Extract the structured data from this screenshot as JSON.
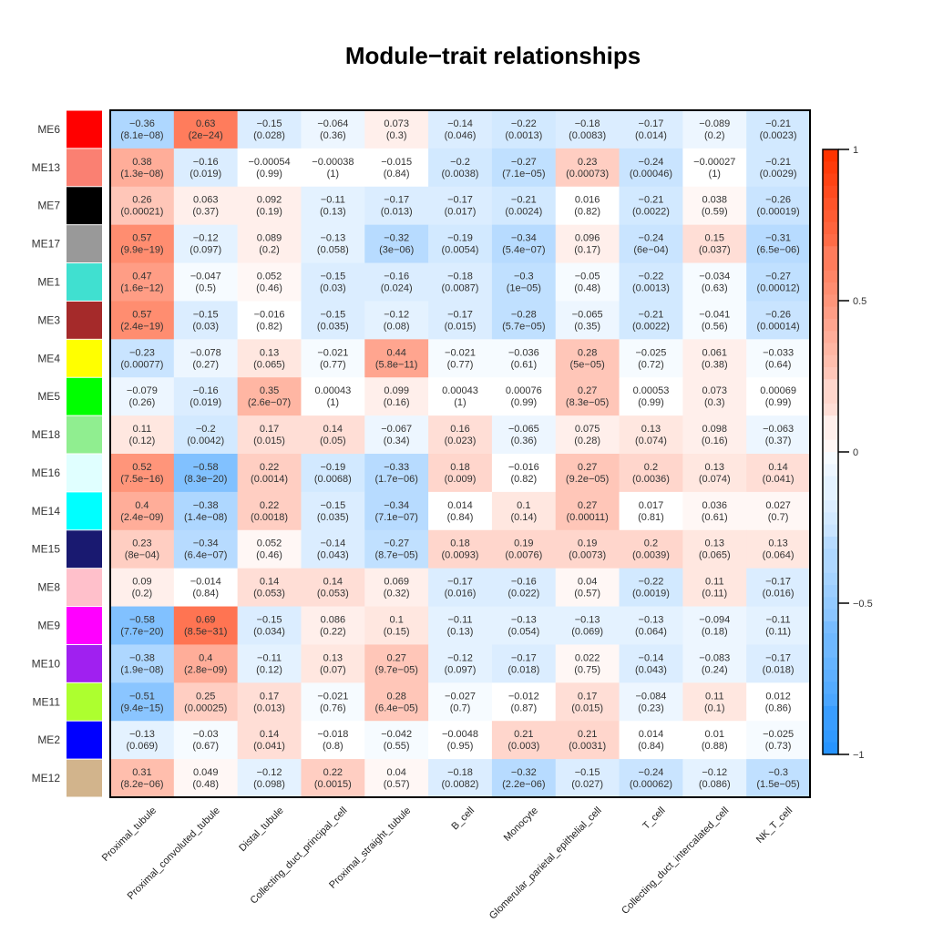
{
  "chart_data": {
    "type": "heatmap",
    "title": "Module−trait relationships",
    "xlabel": "",
    "ylabel": "",
    "columns": [
      "Proximal_tubule",
      "Proximal_convoluted_tubule",
      "Distal_tubule",
      "Collecting_duct_principal_cell",
      "Proximal_straight_tubule",
      "B_cell",
      "Monocyte",
      "Glomerular_parietal_epithelial_cell",
      "T_cell",
      "Collecting_duct_intercalated_cell",
      "NK_T_cell"
    ],
    "rows": [
      {
        "name": "ME6",
        "color": "#FF0000"
      },
      {
        "name": "ME13",
        "color": "#FA8072"
      },
      {
        "name": "ME7",
        "color": "#000000"
      },
      {
        "name": "ME17",
        "color": "#999999"
      },
      {
        "name": "ME1",
        "color": "#40E0D0"
      },
      {
        "name": "ME3",
        "color": "#A52A2A"
      },
      {
        "name": "ME4",
        "color": "#FFFF00"
      },
      {
        "name": "ME5",
        "color": "#00FF00"
      },
      {
        "name": "ME18",
        "color": "#90EE90"
      },
      {
        "name": "ME16",
        "color": "#E0FFFF"
      },
      {
        "name": "ME14",
        "color": "#00FFFF"
      },
      {
        "name": "ME15",
        "color": "#191970"
      },
      {
        "name": "ME8",
        "color": "#FFC0CB"
      },
      {
        "name": "ME9",
        "color": "#FF00FF"
      },
      {
        "name": "ME10",
        "color": "#A020F0"
      },
      {
        "name": "ME11",
        "color": "#ADFF2F"
      },
      {
        "name": "ME2",
        "color": "#0000FF"
      },
      {
        "name": "ME12",
        "color": "#D2B48C"
      }
    ],
    "correlations": [
      [
        -0.36,
        0.63,
        -0.15,
        -0.064,
        0.073,
        -0.14,
        -0.22,
        -0.18,
        -0.17,
        -0.089,
        -0.21
      ],
      [
        0.38,
        -0.16,
        -0.00054,
        -0.00038,
        -0.015,
        -0.2,
        -0.27,
        0.23,
        -0.24,
        -0.00027,
        -0.21
      ],
      [
        0.26,
        0.063,
        0.092,
        -0.11,
        -0.17,
        -0.17,
        -0.21,
        0.016,
        -0.21,
        0.038,
        -0.26
      ],
      [
        0.57,
        -0.12,
        0.089,
        -0.13,
        -0.32,
        -0.19,
        -0.34,
        0.096,
        -0.24,
        0.15,
        -0.31
      ],
      [
        0.47,
        -0.047,
        0.052,
        -0.15,
        -0.16,
        -0.18,
        -0.3,
        -0.05,
        -0.22,
        -0.034,
        -0.27
      ],
      [
        0.57,
        -0.15,
        -0.016,
        -0.15,
        -0.12,
        -0.17,
        -0.28,
        -0.065,
        -0.21,
        -0.041,
        -0.26
      ],
      [
        -0.23,
        -0.078,
        0.13,
        -0.021,
        0.44,
        -0.021,
        -0.036,
        0.28,
        -0.025,
        0.061,
        -0.033
      ],
      [
        -0.079,
        -0.16,
        0.35,
        0.00043,
        0.099,
        0.00043,
        0.00076,
        0.27,
        0.00053,
        0.073,
        0.00069
      ],
      [
        0.11,
        -0.2,
        0.17,
        0.14,
        -0.067,
        0.16,
        -0.065,
        0.075,
        0.13,
        0.098,
        -0.063
      ],
      [
        0.52,
        -0.58,
        0.22,
        -0.19,
        -0.33,
        0.18,
        -0.016,
        0.27,
        0.2,
        0.13,
        0.14
      ],
      [
        0.4,
        -0.38,
        0.22,
        -0.15,
        -0.34,
        0.014,
        0.1,
        0.27,
        0.017,
        0.036,
        0.027
      ],
      [
        0.23,
        -0.34,
        0.052,
        -0.14,
        -0.27,
        0.18,
        0.19,
        0.19,
        0.2,
        0.13,
        0.13
      ],
      [
        0.09,
        -0.014,
        0.14,
        0.14,
        0.069,
        -0.17,
        -0.16,
        0.04,
        -0.22,
        0.11,
        -0.17
      ],
      [
        -0.58,
        0.69,
        -0.15,
        0.086,
        0.1,
        -0.11,
        -0.13,
        -0.13,
        -0.13,
        -0.094,
        -0.11
      ],
      [
        -0.38,
        0.4,
        -0.11,
        0.13,
        0.27,
        -0.12,
        -0.17,
        0.022,
        -0.14,
        -0.083,
        -0.17
      ],
      [
        -0.51,
        0.25,
        0.17,
        -0.021,
        0.28,
        -0.027,
        -0.012,
        0.17,
        -0.084,
        0.11,
        0.012
      ],
      [
        -0.13,
        -0.03,
        0.14,
        -0.018,
        -0.042,
        -0.0048,
        0.21,
        0.21,
        0.014,
        0.01,
        -0.025
      ],
      [
        0.31,
        0.049,
        -0.12,
        0.22,
        0.04,
        -0.18,
        -0.32,
        -0.15,
        -0.24,
        -0.12,
        -0.3
      ]
    ],
    "pvalues": [
      [
        "8.1e−08",
        "2e−24",
        "0.028",
        "0.36",
        "0.3",
        "0.046",
        "0.0013",
        "0.0083",
        "0.014",
        "0.2",
        "0.0023"
      ],
      [
        "1.3e−08",
        "0.019",
        "0.99",
        "1",
        "0.84",
        "0.0038",
        "7.1e−05",
        "0.00073",
        "0.00046",
        "1",
        "0.0029"
      ],
      [
        "0.00021",
        "0.37",
        "0.19",
        "0.13",
        "0.013",
        "0.017",
        "0.0024",
        "0.82",
        "0.0022",
        "0.59",
        "0.00019"
      ],
      [
        "9.9e−19",
        "0.097",
        "0.2",
        "0.058",
        "3e−06",
        "0.0054",
        "5.4e−07",
        "0.17",
        "6e−04",
        "0.037",
        "6.5e−06"
      ],
      [
        "1.6e−12",
        "0.5",
        "0.46",
        "0.03",
        "0.024",
        "0.0087",
        "1e−05",
        "0.48",
        "0.0013",
        "0.63",
        "0.00012"
      ],
      [
        "2.4e−19",
        "0.03",
        "0.82",
        "0.035",
        "0.08",
        "0.015",
        "5.7e−05",
        "0.35",
        "0.0022",
        "0.56",
        "0.00014"
      ],
      [
        "0.00077",
        "0.27",
        "0.065",
        "0.77",
        "5.8e−11",
        "0.77",
        "0.61",
        "5e−05",
        "0.72",
        "0.38",
        "0.64"
      ],
      [
        "0.26",
        "0.019",
        "2.6e−07",
        "1",
        "0.16",
        "1",
        "0.99",
        "8.3e−05",
        "0.99",
        "0.3",
        "0.99"
      ],
      [
        "0.12",
        "0.0042",
        "0.015",
        "0.05",
        "0.34",
        "0.023",
        "0.36",
        "0.28",
        "0.074",
        "0.16",
        "0.37"
      ],
      [
        "7.5e−16",
        "8.3e−20",
        "0.0014",
        "0.0068",
        "1.7e−06",
        "0.009",
        "0.82",
        "9.2e−05",
        "0.0036",
        "0.074",
        "0.041"
      ],
      [
        "2.4e−09",
        "1.4e−08",
        "0.0018",
        "0.035",
        "7.1e−07",
        "0.84",
        "0.14",
        "0.00011",
        "0.81",
        "0.61",
        "0.7"
      ],
      [
        "8e−04",
        "6.4e−07",
        "0.46",
        "0.043",
        "8.7e−05",
        "0.0093",
        "0.0076",
        "0.0073",
        "0.0039",
        "0.065",
        "0.064"
      ],
      [
        "0.2",
        "0.84",
        "0.053",
        "0.053",
        "0.32",
        "0.016",
        "0.022",
        "0.57",
        "0.0019",
        "0.11",
        "0.016"
      ],
      [
        "7.7e−20",
        "8.5e−31",
        "0.034",
        "0.22",
        "0.15",
        "0.13",
        "0.054",
        "0.069",
        "0.064",
        "0.18",
        "0.11"
      ],
      [
        "1.9e−08",
        "2.8e−09",
        "0.12",
        "0.07",
        "9.7e−05",
        "0.097",
        "0.018",
        "0.75",
        "0.043",
        "0.24",
        "0.018"
      ],
      [
        "9.4e−15",
        "0.00025",
        "0.013",
        "0.76",
        "6.4e−05",
        "0.7",
        "0.87",
        "0.015",
        "0.23",
        "0.1",
        "0.86"
      ],
      [
        "0.069",
        "0.67",
        "0.041",
        "0.8",
        "0.55",
        "0.95",
        "0.003",
        "0.0031",
        "0.84",
        "0.88",
        "0.73"
      ],
      [
        "8.2e−06",
        "0.48",
        "0.098",
        "0.0015",
        "0.57",
        "0.0082",
        "2.2e−06",
        "0.027",
        "0.00062",
        "0.086",
        "1.5e−05"
      ]
    ],
    "color_scale": {
      "range": [
        -1,
        1
      ],
      "low_color": "#1E90FF",
      "mid_color": "#FFFFFF",
      "high_color": "#FF3300",
      "ticks": [
        1,
        0.5,
        0,
        -0.5,
        -1
      ],
      "tick_labels": [
        "1",
        "0.5",
        "0",
        "−0.5",
        "−1"
      ],
      "placement": "right"
    }
  }
}
